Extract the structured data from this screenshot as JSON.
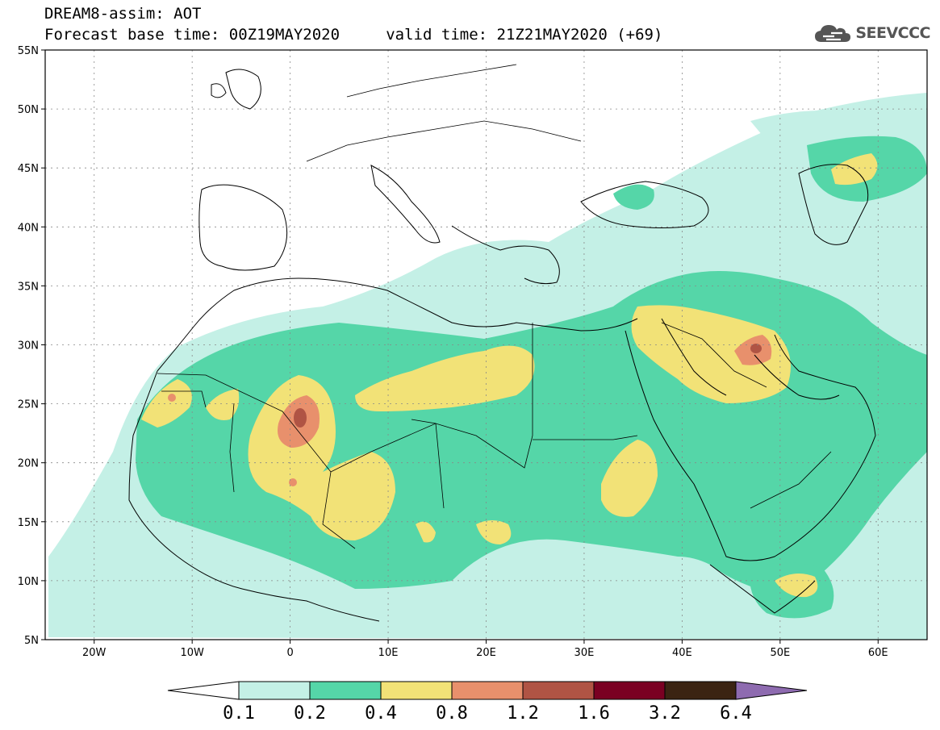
{
  "header": {
    "title": "DREAM8-assim: AOT",
    "subtitle": "Forecast base time: 00Z19MAY2020     valid time: 21Z21MAY2020 (+69)",
    "logo_text": "SEEVCCC"
  },
  "map": {
    "lon_range": [
      -25,
      65
    ],
    "lat_range": [
      5,
      55
    ],
    "lon_ticks": [
      {
        "value": -20,
        "label": "20W"
      },
      {
        "value": -10,
        "label": "10W"
      },
      {
        "value": 0,
        "label": "0"
      },
      {
        "value": 10,
        "label": "10E"
      },
      {
        "value": 20,
        "label": "20E"
      },
      {
        "value": 30,
        "label": "30E"
      },
      {
        "value": 40,
        "label": "40E"
      },
      {
        "value": 50,
        "label": "50E"
      },
      {
        "value": 60,
        "label": "60E"
      }
    ],
    "lat_ticks": [
      {
        "value": 55,
        "label": "55N"
      },
      {
        "value": 50,
        "label": "50N"
      },
      {
        "value": 45,
        "label": "45N"
      },
      {
        "value": 40,
        "label": "40N"
      },
      {
        "value": 35,
        "label": "35N"
      },
      {
        "value": 30,
        "label": "30N"
      },
      {
        "value": 25,
        "label": "25N"
      },
      {
        "value": 20,
        "label": "20N"
      },
      {
        "value": 15,
        "label": "15N"
      },
      {
        "value": 10,
        "label": "10N"
      },
      {
        "value": 5,
        "label": "5N"
      }
    ]
  },
  "colorbar": {
    "colors": [
      "#ffffff",
      "#c4f0e6",
      "#55d6a8",
      "#f2e277",
      "#e8906c",
      "#b05444",
      "#7a0022",
      "#3b2412",
      "#8e6bb0"
    ],
    "labels": [
      "0.1",
      "0.2",
      "0.4",
      "0.8",
      "1.2",
      "1.6",
      "3.2",
      "6.4"
    ]
  }
}
